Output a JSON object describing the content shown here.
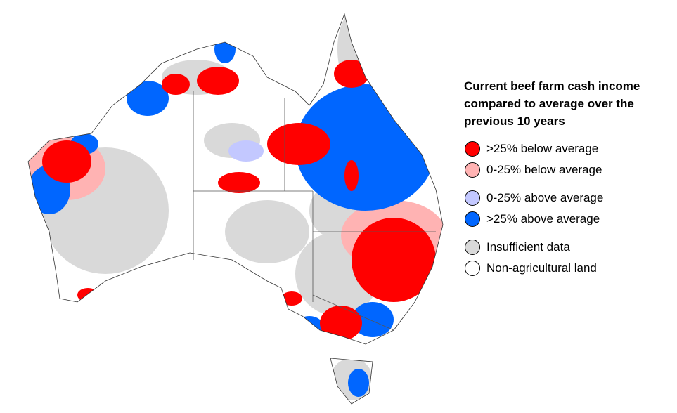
{
  "legend": {
    "title": "Current beef farm cash income compared to average over the previous 10 years",
    "groups": [
      [
        {
          "label": ">25% below average",
          "color": "#ff0000"
        },
        {
          "label": "0-25% below average",
          "color": "#ffb3b3"
        }
      ],
      [
        {
          "label": "0-25% above average",
          "color": "#c3c8ff"
        },
        {
          "label": ">25% above average",
          "color": "#0066ff"
        }
      ],
      [
        {
          "label": "Insufficient data",
          "color": "#d9d9d9"
        },
        {
          "label": "Non-agricultural land",
          "color": "#ffffff"
        }
      ]
    ]
  }
}
